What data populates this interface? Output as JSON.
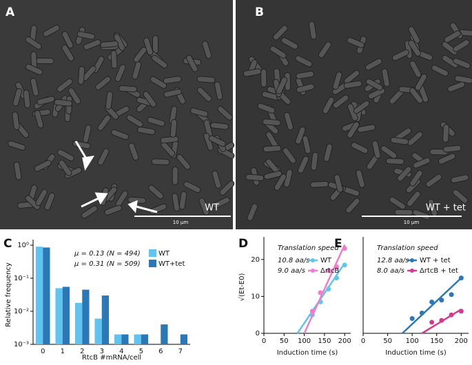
{
  "images": [
    {
      "label": "A",
      "caption": "WT",
      "scale_bar": "10 μm"
    },
    {
      "label": "B",
      "caption": "WT + tet",
      "scale_bar": "10 μm"
    }
  ],
  "chart_data": [
    {
      "type": "bar",
      "panel_label": "C",
      "log_y": true,
      "xlabel": "RtcB #mRNA/cell",
      "ylabel": "Relative frequency",
      "categories": [
        "0",
        "1",
        "2",
        "3",
        "4",
        "5",
        "6",
        "7"
      ],
      "series": [
        {
          "name": "WT",
          "color": "#5fc5f0",
          "annotation": "μ = 0.13 (N = 494)",
          "values": [
            0.9,
            0.05,
            0.018,
            0.006,
            0.002,
            0.002,
            null,
            null
          ]
        },
        {
          "name": "WT+tet",
          "color": "#2a78b8",
          "annotation": "μ = 0.31 (N = 509)",
          "values": [
            0.85,
            0.055,
            0.045,
            0.03,
            0.002,
            0.002,
            0.004,
            0.002
          ]
        }
      ],
      "ylim": [
        0.001,
        1
      ],
      "yticks": [
        {
          "value": 1,
          "label": "10⁰"
        },
        {
          "value": 0.1,
          "label": "10⁻¹"
        },
        {
          "value": 0.01,
          "label": "10⁻²"
        },
        {
          "value": 0.001,
          "label": "10⁻³"
        }
      ]
    },
    {
      "type": "scatter",
      "panel_label": "D",
      "legend_title": "Translation speed",
      "xlabel": "Induction time (s)",
      "ylabel": "√(Et-E0)",
      "series": [
        {
          "name": "WT",
          "speed": "10.8 aa/s",
          "color": "#5fc5f0",
          "x": [
            120,
            140,
            160,
            180,
            200
          ],
          "values": [
            5,
            8.5,
            12,
            15,
            18.5
          ],
          "fit_x": [
            83,
            200
          ],
          "fit_y": [
            0,
            19
          ]
        },
        {
          "name": "ΔrtcB",
          "speed": "9.0 aa/s",
          "color": "#f07ccb",
          "x": [
            120,
            140,
            160,
            180,
            200
          ],
          "values": [
            6,
            11,
            17,
            18,
            23
          ],
          "fit_x": [
            100,
            200
          ],
          "fit_y": [
            0,
            24
          ]
        }
      ],
      "xlim": [
        0,
        215
      ],
      "xticks": [
        0,
        50,
        100,
        150,
        200
      ],
      "ylim": [
        0,
        25
      ],
      "yticks": [
        0,
        10,
        20
      ]
    },
    {
      "type": "scatter",
      "panel_label": "E",
      "legend_title": "Translation speed",
      "xlabel": "Induction time (s)",
      "series": [
        {
          "name": "WT + tet",
          "speed": "12.8 aa/s",
          "color": "#2a78b8",
          "x": [
            100,
            120,
            140,
            160,
            180,
            200
          ],
          "values": [
            4,
            5.5,
            8.5,
            9,
            10.5,
            15
          ],
          "fit_x": [
            80,
            200
          ],
          "fit_y": [
            0,
            15
          ]
        },
        {
          "name": "ΔrtcB + tet",
          "speed": "8.0 aa/s",
          "color": "#d63a8e",
          "x": [
            140,
            160,
            180,
            200
          ],
          "values": [
            3,
            3.5,
            5,
            6
          ],
          "fit_x": [
            120,
            200
          ],
          "fit_y": [
            0,
            6.5
          ]
        }
      ],
      "xlim": [
        0,
        215
      ],
      "xticks": [
        0,
        50,
        100,
        150,
        200
      ],
      "ylim": [
        0,
        25
      ]
    }
  ]
}
